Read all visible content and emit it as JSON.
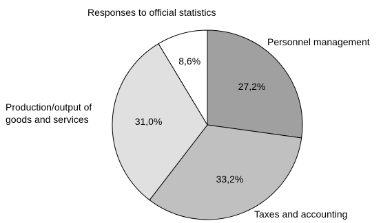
{
  "chart_data": {
    "type": "pie",
    "slices": [
      {
        "label": "Personnel management",
        "value": 27.2,
        "value_label": "27,2%",
        "color": "#a0a0a0"
      },
      {
        "label": "Taxes and accounting",
        "value": 33.2,
        "value_label": "33,2%",
        "color": "#c0c0c0"
      },
      {
        "label": "Production/output of goods and services",
        "value": 31.0,
        "value_label": "31,0%",
        "color": "#e0e0e0"
      },
      {
        "label": "Responses to official statistics",
        "value": 8.6,
        "value_label": "8,6%",
        "color": "#ffffff"
      }
    ],
    "start_angle": "12 o'clock",
    "direction": "clockwise",
    "labels": {
      "title_top": "Responses to official statistics",
      "right_top": "Personnel management",
      "left_line1": "Production/output of",
      "left_line2": "goods and services",
      "bottom_right": "Taxes and accounting"
    }
  }
}
